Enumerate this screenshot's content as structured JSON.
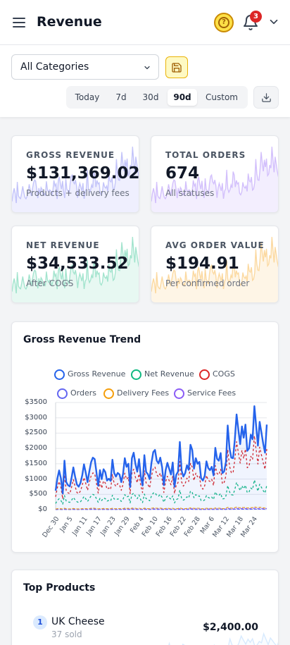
{
  "header": {
    "title": "Revenue",
    "notification_count": "3"
  },
  "filters": {
    "category": "All Categories",
    "ranges": [
      "Today",
      "7d",
      "30d",
      "90d",
      "Custom"
    ],
    "active_range": "90d"
  },
  "stats": [
    {
      "label": "GROSS REVENUE",
      "value": "$131,369.02",
      "sub": "Products + delivery fees",
      "accent": "#6366f1"
    },
    {
      "label": "TOTAL ORDERS",
      "value": "674",
      "sub": "All statuses",
      "accent": "#8b5cf6"
    },
    {
      "label": "NET REVENUE",
      "value": "$34,533.52",
      "sub": "After COGS",
      "accent": "#10b981"
    },
    {
      "label": "AVG ORDER VALUE",
      "value": "$194.91",
      "sub": "Per confirmed order",
      "accent": "#f59e0b"
    }
  ],
  "trend": {
    "title": "Gross Revenue Trend",
    "legend": [
      {
        "name": "Gross Revenue",
        "color": "#2563eb"
      },
      {
        "name": "Net Revenue",
        "color": "#10b981"
      },
      {
        "name": "COGS",
        "color": "#dc2626"
      },
      {
        "name": "Orders",
        "color": "#6366f1"
      },
      {
        "name": "Delivery Fees",
        "color": "#f59e0b"
      },
      {
        "name": "Service Fees",
        "color": "#8b5cf6"
      }
    ]
  },
  "chart_data": {
    "type": "line",
    "title": "Gross Revenue Trend",
    "yticks": [
      "$3500",
      "$3000",
      "$2500",
      "$2000",
      "$1500",
      "$1000",
      "$500",
      "$0"
    ],
    "ylim": [
      0,
      3500
    ],
    "xticks": [
      "Dec 30",
      "Jan 5",
      "Jan 11",
      "Jan 17",
      "Jan 23",
      "Jan 29",
      "Feb 4",
      "Feb 10",
      "Feb 16",
      "Feb 22",
      "Feb 28",
      "Mar 6",
      "Mar 12",
      "Mar 18",
      "Mar 24"
    ],
    "grid": true,
    "legend_position": "top",
    "series": [
      {
        "name": "Gross Revenue",
        "values": [
          620,
          1020,
          1280,
          1020,
          530,
          1600,
          900,
          800,
          760,
          1050,
          1380,
          1080,
          820,
          750,
          870,
          1120,
          1480,
          1200,
          900,
          1250,
          1550,
          1700,
          1650,
          1230,
          780,
          1290,
          1000,
          1320,
          1230,
          950,
          1010,
          940,
          1630,
          1200,
          1080,
          1200,
          1150,
          900,
          1170,
          1680,
          1400,
          1500,
          740,
          1680,
          1860,
          1500,
          1240,
          1650,
          1100,
          790,
          1780,
          1230,
          1160,
          1000,
          1520,
          1880,
          1950,
          1600,
          1510,
          1700,
          1390,
          800,
          1290,
          1530,
          1340,
          1150,
          1540,
          750,
          1140,
          1240,
          2210,
          1280,
          1080,
          1190,
          1450,
          1300,
          2120,
          1950,
          1340,
          1680,
          1500,
          1560,
          1030,
          950,
          1100,
          1580,
          1360,
          1290,
          1400,
          1120,
          2020,
          1660,
          1600,
          1850,
          1190,
          1250,
          1560,
          2750,
          2000,
          1700,
          1680,
          2290,
          3110,
          2600,
          2140,
          2720,
          2350,
          2780,
          1920,
          2000,
          2450,
          2300,
          3380,
          2740,
          2090,
          2870,
          2520,
          2150,
          1860,
          2780
        ]
      },
      {
        "name": "Net Revenue",
        "values": [
          200,
          300,
          360,
          300,
          180,
          460,
          280,
          250,
          240,
          310,
          400,
          320,
          260,
          230,
          260,
          330,
          430,
          350,
          270,
          360,
          450,
          500,
          470,
          360,
          240,
          370,
          300,
          380,
          360,
          280,
          300,
          280,
          470,
          350,
          320,
          350,
          340,
          270,
          340,
          490,
          410,
          440,
          220,
          490,
          540,
          440,
          360,
          480,
          320,
          230,
          510,
          360,
          340,
          290,
          440,
          540,
          560,
          460,
          440,
          500,
          400,
          240,
          380,
          440,
          390,
          340,
          450,
          220,
          330,
          360,
          640,
          370,
          310,
          340,
          420,
          380,
          610,
          560,
          390,
          490,
          430,
          450,
          300,
          280,
          320,
          460,
          400,
          370,
          410,
          330,
          580,
          480,
          460,
          530,
          350,
          360,
          450,
          790,
          580,
          490,
          480,
          660,
          890,
          750,
          620,
          780,
          680,
          800,
          550,
          580,
          710,
          660,
          970,
          790,
          600,
          830,
          730,
          620,
          540,
          800
        ]
      },
      {
        "name": "COGS",
        "values": [
          420,
          720,
          920,
          720,
          350,
          1140,
          620,
          550,
          520,
          740,
          980,
          760,
          560,
          520,
          610,
          790,
          1050,
          850,
          630,
          890,
          1100,
          1200,
          1180,
          870,
          540,
          920,
          700,
          940,
          870,
          670,
          710,
          660,
          1160,
          850,
          760,
          850,
          810,
          630,
          830,
          1190,
          990,
          1060,
          520,
          1190,
          1320,
          1060,
          880,
          1170,
          780,
          560,
          1270,
          870,
          820,
          710,
          1080,
          1340,
          1390,
          1140,
          1070,
          1200,
          990,
          560,
          910,
          1090,
          950,
          810,
          1090,
          530,
          810,
          880,
          1570,
          910,
          770,
          850,
          1030,
          920,
          1510,
          1390,
          950,
          1190,
          1070,
          1110,
          730,
          670,
          780,
          1120,
          960,
          920,
          990,
          790,
          1440,
          1180,
          1140,
          1320,
          840,
          890,
          1110,
          1960,
          1420,
          1210,
          1200,
          1630,
          2220,
          1850,
          1520,
          1940,
          1670,
          1980,
          1370,
          1420,
          1740,
          1640,
          2410,
          1950,
          1490,
          2040,
          1790,
          1530,
          1320,
          1980
        ]
      },
      {
        "name": "Orders",
        "values": [
          3,
          5,
          6,
          5,
          3,
          8,
          4,
          4,
          4,
          5,
          7,
          5,
          4,
          4,
          4,
          6,
          7,
          6,
          4,
          6,
          8,
          9,
          8,
          6,
          4,
          6,
          5,
          7,
          6,
          5,
          5,
          5,
          8,
          6,
          5,
          6,
          6,
          5,
          6,
          9,
          7,
          8,
          4,
          9,
          9,
          8,
          6,
          8,
          6,
          4,
          9,
          6,
          6,
          5,
          8,
          10,
          10,
          8,
          8,
          9,
          7,
          4,
          7,
          8,
          7,
          6,
          8,
          4,
          6,
          6,
          11,
          7,
          5,
          6,
          7,
          7,
          11,
          10,
          7,
          9,
          8,
          8,
          5,
          5,
          6,
          8,
          7,
          7,
          7,
          6,
          10,
          8,
          8,
          9,
          6,
          6,
          8,
          14,
          10,
          9,
          9,
          12,
          16,
          13,
          11,
          14,
          12,
          14,
          10,
          10,
          12,
          12,
          17,
          14,
          11,
          15,
          13,
          11,
          9,
          14
        ]
      },
      {
        "name": "Delivery Fees",
        "values": [
          20,
          30,
          35,
          30,
          20,
          45,
          30,
          25,
          25,
          30,
          40,
          30,
          25,
          25,
          25,
          35,
          40,
          35,
          30,
          35,
          45,
          50,
          45,
          35,
          25,
          35,
          30,
          40,
          35,
          30,
          30,
          30,
          45,
          35,
          30,
          35,
          35,
          30,
          35,
          50,
          40,
          45,
          25,
          50,
          50,
          45,
          35,
          45,
          35,
          25,
          50,
          35,
          35,
          30,
          45,
          55,
          55,
          45,
          45,
          50,
          40,
          25,
          40,
          45,
          40,
          35,
          45,
          25,
          35,
          35,
          60,
          40,
          30,
          35,
          40,
          40,
          60,
          55,
          40,
          50,
          45,
          45,
          30,
          30,
          35,
          45,
          40,
          40,
          40,
          35,
          55,
          45,
          45,
          50,
          35,
          35,
          45,
          75,
          55,
          50,
          50,
          65,
          85,
          70,
          60,
          75,
          65,
          75,
          55,
          55,
          65,
          65,
          90,
          75,
          60,
          80,
          70,
          60,
          50,
          75
        ]
      },
      {
        "name": "Service Fees",
        "values": [
          10,
          15,
          18,
          15,
          10,
          22,
          14,
          12,
          12,
          15,
          20,
          15,
          12,
          12,
          13,
          17,
          20,
          17,
          14,
          18,
          22,
          25,
          23,
          17,
          12,
          18,
          15,
          19,
          18,
          14,
          15,
          14,
          23,
          17,
          15,
          17,
          17,
          14,
          17,
          24,
          20,
          22,
          12,
          24,
          26,
          22,
          18,
          23,
          16,
          12,
          25,
          18,
          17,
          15,
          22,
          27,
          28,
          23,
          22,
          24,
          20,
          12,
          19,
          22,
          20,
          17,
          22,
          12,
          17,
          18,
          31,
          19,
          16,
          17,
          21,
          19,
          30,
          28,
          20,
          24,
          22,
          23,
          15,
          14,
          16,
          23,
          20,
          19,
          20,
          17,
          29,
          24,
          23,
          27,
          17,
          18,
          22,
          39,
          29,
          25,
          24,
          33,
          44,
          37,
          31,
          39,
          34,
          40,
          28,
          29,
          35,
          33,
          48,
          39,
          30,
          41,
          36,
          31,
          27,
          40
        ]
      }
    ]
  },
  "top_products": {
    "title": "Top Products",
    "items": [
      {
        "rank": "1",
        "name": "UK Cheese",
        "sold": "37 sold",
        "amount": "$2,400.00"
      }
    ]
  }
}
